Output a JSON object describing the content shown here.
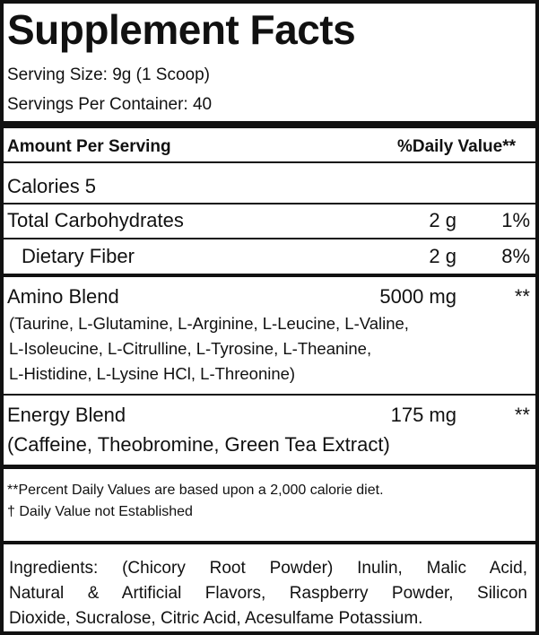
{
  "header": {
    "title": "Supplement Facts",
    "serving_size": "Serving Size: 9g (1 Scoop)",
    "servings_per_container": "Servings Per Container: 40"
  },
  "table": {
    "columns": [
      "Amount Per Serving",
      "%Daily Value**"
    ],
    "rows": [
      {
        "name": "Calories 5"
      },
      {
        "name": "Total Carbohydrates",
        "amount": "2 g",
        "daily_value": "1%"
      },
      {
        "name": "Dietary Fiber",
        "amount": "2 g",
        "daily_value": "8%"
      },
      {
        "name": "Amino Blend",
        "amount": "5000 mg",
        "daily_value": "**",
        "details": [
          "(Taurine, L-Glutamine, L-Arginine, L-Leucine, L-Valine,",
          "L-Isoleucine, L-Citrulline, L-Tyrosine, L-Theanine,",
          "L-Histidine, L-Lysine HCl, L-Threonine)"
        ]
      },
      {
        "name": "Energy Blend",
        "amount": "175 mg",
        "daily_value": "**",
        "details": [
          "(Caffeine, Theobromine, Green Tea Extract)"
        ]
      }
    ]
  },
  "footnotes": [
    "**Percent Daily Values are based upon a 2,000 calorie diet.",
    "† Daily Value not Established"
  ],
  "ingredients": [
    "Ingredients: (Chicory Root Powder) Inulin, Malic Acid,",
    "Natural & Artificial Flavors, Raspberry Powder, Silicon",
    "Dioxide, Sucralose, Citric Acid, Acesulfame Potassium."
  ]
}
